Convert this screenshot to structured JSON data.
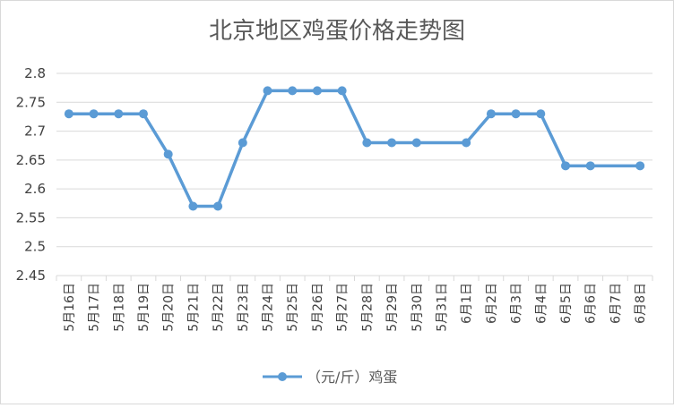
{
  "chart_data": {
    "type": "line",
    "title": "北京地区鸡蛋价格走势图",
    "xlabel": "",
    "ylabel": "",
    "ylim": [
      2.45,
      2.8
    ],
    "ytick_labels": [
      "2.45",
      "2.5",
      "2.55",
      "2.6",
      "2.65",
      "2.7",
      "2.75",
      "2.8"
    ],
    "grid": "horizontal",
    "legend_position": "bottom",
    "categories": [
      "5月16日",
      "5月17日",
      "5月18日",
      "5月19日",
      "5月20日",
      "5月21日",
      "5月22日",
      "5月23日",
      "5月24日",
      "5月25日",
      "5月26日",
      "5月27日",
      "5月28日",
      "5月29日",
      "5月30日",
      "5月31日",
      "6月1日",
      "6月2日",
      "6月3日",
      "6月4日",
      "6月5日",
      "6月6日",
      "6月7日",
      "6月8日"
    ],
    "series": [
      {
        "name": "（元/斤）鸡蛋",
        "color": "#5b9bd5",
        "values": [
          2.73,
          2.73,
          2.73,
          2.73,
          2.66,
          2.57,
          2.57,
          2.68,
          2.77,
          2.77,
          2.77,
          2.77,
          2.68,
          2.68,
          2.68,
          null,
          2.68,
          2.73,
          2.73,
          2.73,
          2.64,
          2.64,
          null,
          2.64
        ]
      }
    ]
  }
}
